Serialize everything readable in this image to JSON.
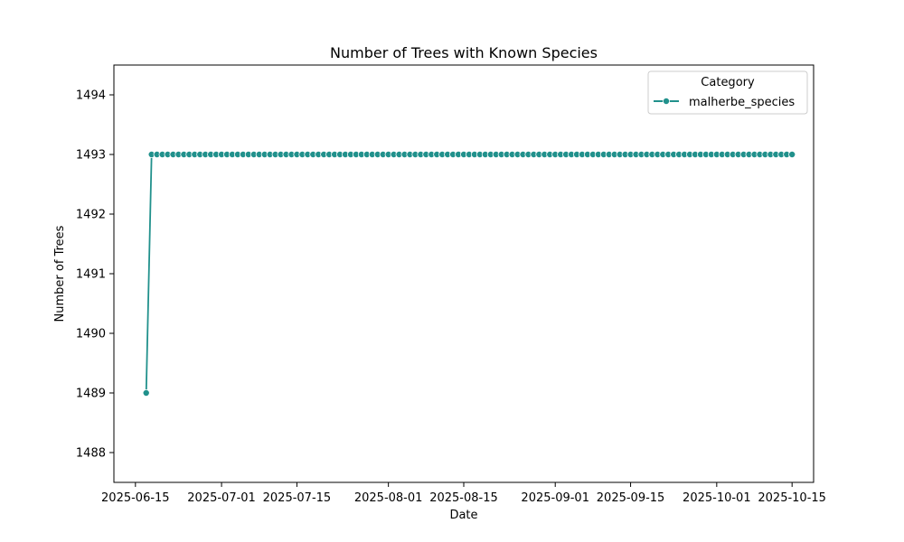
{
  "chart_data": {
    "type": "line",
    "title": "Number of Trees with Known Species",
    "xlabel": "Date",
    "ylabel": "Number of Trees",
    "x_axis": {
      "kind": "date",
      "range": [
        "2025-06-11",
        "2025-10-19"
      ],
      "ticks": [
        "2025-06-15",
        "2025-07-01",
        "2025-07-15",
        "2025-08-01",
        "2025-08-15",
        "2025-09-01",
        "2025-09-15",
        "2025-10-01",
        "2025-10-15"
      ]
    },
    "y_axis": {
      "range": [
        1487.5,
        1494.5
      ],
      "ticks": [
        1488,
        1489,
        1490,
        1491,
        1492,
        1493,
        1494
      ]
    },
    "grid": false,
    "legend": {
      "title": "Category",
      "position": "top-right"
    },
    "colors": {
      "series": "#21918c"
    },
    "series": [
      {
        "name": "malherbe_species",
        "marker": "circle",
        "first_date": "2025-06-17",
        "last_date": "2025-10-15",
        "date_step_days": 1,
        "values": [
          1489,
          1493,
          1493,
          1493,
          1493,
          1493,
          1493,
          1493,
          1493,
          1493,
          1493,
          1493,
          1493,
          1493,
          1493,
          1493,
          1493,
          1493,
          1493,
          1493,
          1493,
          1493,
          1493,
          1493,
          1493,
          1493,
          1493,
          1493,
          1493,
          1493,
          1493,
          1493,
          1493,
          1493,
          1493,
          1493,
          1493,
          1493,
          1493,
          1493,
          1493,
          1493,
          1493,
          1493,
          1493,
          1493,
          1493,
          1493,
          1493,
          1493,
          1493,
          1493,
          1493,
          1493,
          1493,
          1493,
          1493,
          1493,
          1493,
          1493,
          1493,
          1493,
          1493,
          1493,
          1493,
          1493,
          1493,
          1493,
          1493,
          1493,
          1493,
          1493,
          1493,
          1493,
          1493,
          1493,
          1493,
          1493,
          1493,
          1493,
          1493,
          1493,
          1493,
          1493,
          1493,
          1493,
          1493,
          1493,
          1493,
          1493,
          1493,
          1493,
          1493,
          1493,
          1493,
          1493,
          1493,
          1493,
          1493,
          1493,
          1493,
          1493,
          1493,
          1493,
          1493,
          1493,
          1493,
          1493,
          1493,
          1493,
          1493,
          1493,
          1493,
          1493,
          1493,
          1493,
          1493,
          1493,
          1493,
          1493,
          1493
        ]
      }
    ]
  }
}
